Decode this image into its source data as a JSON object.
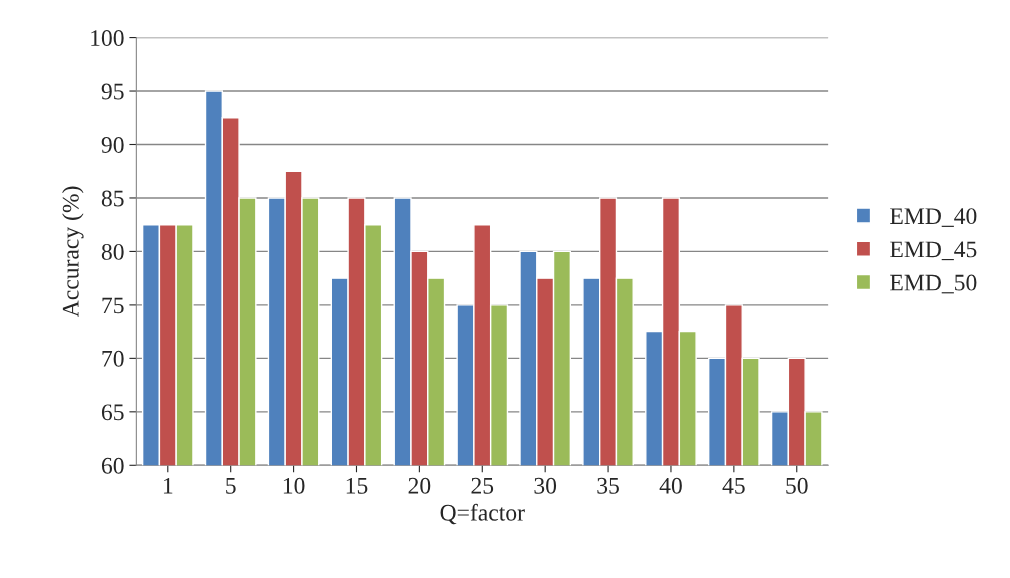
{
  "chart_data": {
    "type": "bar",
    "xlabel": "Q=factor",
    "ylabel": "Accuracy (%)",
    "categories": [
      "1",
      "5",
      "10",
      "15",
      "20",
      "25",
      "30",
      "35",
      "40",
      "45",
      "50"
    ],
    "series": [
      {
        "name": "EMD_40",
        "color": "#4f81bd",
        "values": [
          82.5,
          95,
          85,
          77.5,
          85,
          75,
          80,
          77.5,
          72.5,
          70,
          65
        ]
      },
      {
        "name": "EMD_45",
        "color": "#c0504d",
        "values": [
          82.5,
          92.5,
          87.5,
          85,
          80,
          82.5,
          77.5,
          85,
          85,
          75,
          70
        ]
      },
      {
        "name": "EMD_50",
        "color": "#9bbb59",
        "values": [
          82.5,
          85,
          85,
          82.5,
          77.5,
          75,
          80,
          77.5,
          72.5,
          70,
          65
        ]
      }
    ],
    "ylim": [
      60,
      100
    ],
    "yticks": [
      60,
      65,
      70,
      75,
      80,
      85,
      90,
      95,
      100
    ],
    "grid": "y",
    "legend": "right"
  }
}
